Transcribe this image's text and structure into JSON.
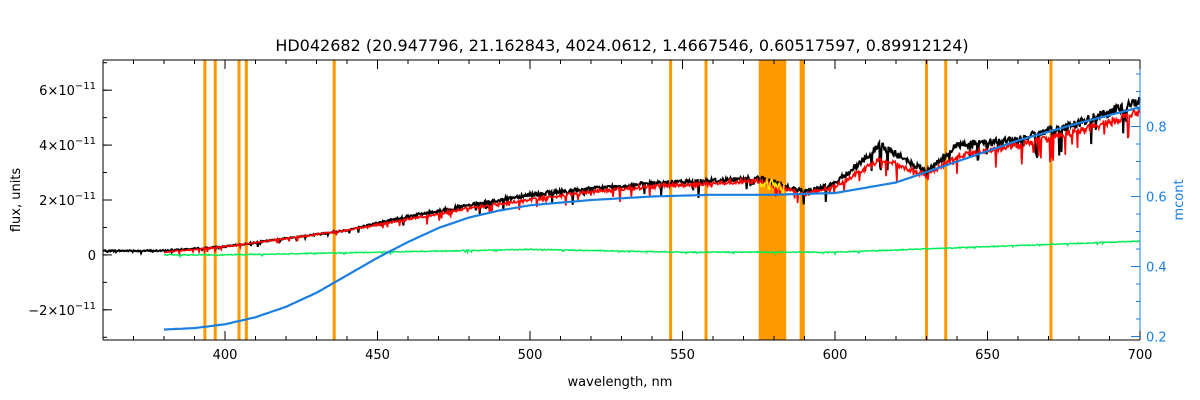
{
  "chart_data": {
    "type": "line",
    "title": "HD042682    (20.947796, 21.162843, 4024.0612, 1.4667546, 0.60517597, 0.89912124)",
    "xlabel": "wavelength, nm",
    "ylabel": "flux, units",
    "y2label": "mcont",
    "xlim": [
      360,
      700
    ],
    "ylim": [
      -3.1e-11,
      7.1e-11
    ],
    "y2lim": [
      0.19,
      0.99
    ],
    "x_ticks": [
      400,
      450,
      500,
      550,
      600,
      650,
      700
    ],
    "x_tick_labels": [
      "400",
      "450",
      "500",
      "550",
      "600",
      "650",
      "700"
    ],
    "y_ticks": [
      -2e-11,
      0,
      2e-11,
      4e-11,
      6e-11
    ],
    "y_tick_labels": [
      {
        "mant": "−2×10",
        "exp": "−11"
      },
      {
        "mant": "0",
        "exp": ""
      },
      {
        "mant": "2×10",
        "exp": "−11"
      },
      {
        "mant": "4×10",
        "exp": "−11"
      },
      {
        "mant": "6×10",
        "exp": "−11"
      }
    ],
    "y2_ticks": [
      0.2,
      0.4,
      0.6,
      0.8
    ],
    "y2_tick_labels": [
      "0.2",
      "0.4",
      "0.6",
      "0.8"
    ],
    "masked_lines": [
      393.4,
      396.8,
      404.6,
      407.0,
      435.8,
      546.1,
      557.7,
      588.9,
      589.6,
      630.0,
      636.3,
      670.8
    ],
    "masked_band": [
      575,
      584
    ],
    "series": [
      {
        "role": "observed",
        "color": "#000000",
        "x": [
          360,
          380,
          400,
          420,
          440,
          460,
          480,
          500,
          520,
          540,
          560,
          575,
          590,
          600,
          615,
          630,
          640,
          660,
          680,
          700
        ],
        "y": [
          1.5e-12,
          1.5e-12,
          3e-12,
          6e-12,
          9e-12,
          1.4e-11,
          1.8e-11,
          2.2e-11,
          2.4e-11,
          2.6e-11,
          2.7e-11,
          2.8e-11,
          2.3e-11,
          2.6e-11,
          4e-11,
          3e-11,
          4e-11,
          4.2e-11,
          4.8e-11,
          5.6e-11
        ]
      },
      {
        "role": "model",
        "color": "#ff0000",
        "x": [
          380,
          400,
          420,
          440,
          460,
          480,
          500,
          520,
          540,
          560,
          575,
          590,
          600,
          615,
          630,
          640,
          660,
          680,
          700
        ],
        "y": [
          1e-12,
          3e-12,
          6e-12,
          9e-12,
          1.3e-11,
          1.7e-11,
          2e-11,
          2.3e-11,
          2.5e-11,
          2.6e-11,
          2.7e-11,
          2.2e-11,
          2.5e-11,
          3.5e-11,
          2.9e-11,
          3.6e-11,
          4e-11,
          4.5e-11,
          5.2e-11
        ]
      },
      {
        "role": "residual",
        "color": "#00ee55",
        "x": [
          380,
          400,
          450,
          500,
          550,
          600,
          650,
          700
        ],
        "y": [
          0,
          0,
          1e-12,
          2e-12,
          1e-12,
          1e-12,
          3e-12,
          5e-12
        ]
      },
      {
        "role": "continuum",
        "color": "#1a7fe0",
        "axis": "right",
        "x": [
          380,
          390,
          400,
          410,
          420,
          430,
          440,
          450,
          460,
          470,
          480,
          490,
          500,
          520,
          540,
          560,
          580,
          600,
          620,
          640,
          660,
          680,
          700
        ],
        "y": [
          0.22,
          0.224,
          0.235,
          0.255,
          0.285,
          0.325,
          0.375,
          0.425,
          0.47,
          0.51,
          0.54,
          0.56,
          0.575,
          0.59,
          0.6,
          0.605,
          0.605,
          0.61,
          0.64,
          0.7,
          0.76,
          0.81,
          0.855
        ]
      }
    ]
  }
}
